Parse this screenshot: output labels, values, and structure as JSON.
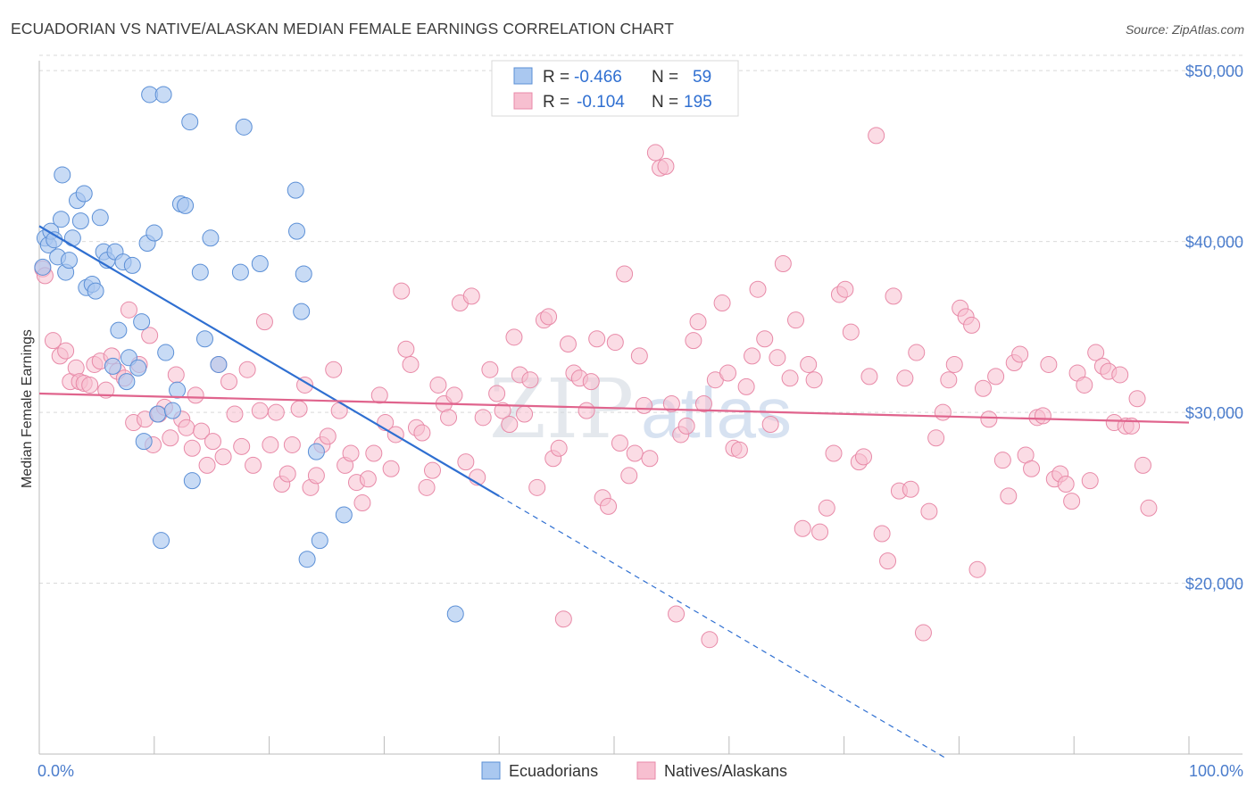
{
  "title": "ECUADORIAN VS NATIVE/ALASKAN MEDIAN FEMALE EARNINGS CORRELATION CHART",
  "source": "Source: ZipAtlas.com",
  "colors": {
    "ecuadorians_fill": "#aac8f0",
    "ecuadorians_stroke": "#5b8fd6",
    "ecuadorians_line": "#2f6fd1",
    "natives_fill": "#f7bfd0",
    "natives_stroke": "#e88aa8",
    "natives_line": "#e0648d",
    "tick_label": "#4a7ccc",
    "grid": "#d9d9d9",
    "watermark": "#c9d2de"
  },
  "legend": {
    "rows": [
      {
        "r_label": "R = ",
        "r_value": "-0.466",
        "n_label": "N = ",
        "n_value": "59"
      },
      {
        "r_label": "R = ",
        "r_value": "-0.104",
        "n_label": "N = ",
        "n_value": "195"
      }
    ]
  },
  "bottom_legend": [
    "Ecuadorians",
    "Natives/Alaskans"
  ],
  "watermark": {
    "zip": "ZIP",
    "atlas": "atlas"
  },
  "chart_data": {
    "type": "scatter",
    "title": "ECUADORIAN VS NATIVE/ALASKAN MEDIAN FEMALE EARNINGS CORRELATION CHART",
    "xlabel": "",
    "ylabel": "Median Female Earnings",
    "xlim": [
      0,
      100
    ],
    "ylim": [
      10000,
      51000
    ],
    "x_tick_labels": [
      "0.0%",
      "100.0%"
    ],
    "y_ticks": [
      20000,
      30000,
      40000,
      50000
    ],
    "y_tick_labels": [
      "$20,000",
      "$30,000",
      "$40,000",
      "$50,000"
    ],
    "grid": true,
    "legend_position": "top-center",
    "series": [
      {
        "name": "Ecuadorians",
        "r": -0.466,
        "n": 59,
        "trend": {
          "x0": 0,
          "y0": 40900,
          "x1": 40,
          "y1": 25100,
          "dashed_to_x": 79,
          "dashed_y": 9700
        },
        "points": [
          [
            0.3,
            38500
          ],
          [
            0.5,
            40200
          ],
          [
            0.8,
            39800
          ],
          [
            1.0,
            40600
          ],
          [
            1.3,
            40100
          ],
          [
            1.6,
            39100
          ],
          [
            1.9,
            41300
          ],
          [
            2.0,
            43900
          ],
          [
            2.3,
            38200
          ],
          [
            2.6,
            38900
          ],
          [
            2.9,
            40200
          ],
          [
            3.3,
            42400
          ],
          [
            3.6,
            41200
          ],
          [
            3.9,
            42800
          ],
          [
            4.1,
            37300
          ],
          [
            4.6,
            37500
          ],
          [
            4.9,
            37100
          ],
          [
            5.3,
            41400
          ],
          [
            5.6,
            39400
          ],
          [
            5.9,
            38900
          ],
          [
            6.4,
            32700
          ],
          [
            6.6,
            39400
          ],
          [
            6.9,
            34800
          ],
          [
            7.3,
            38800
          ],
          [
            7.6,
            31800
          ],
          [
            7.8,
            33200
          ],
          [
            8.1,
            38600
          ],
          [
            8.6,
            32600
          ],
          [
            8.9,
            35300
          ],
          [
            9.1,
            28300
          ],
          [
            9.4,
            39900
          ],
          [
            9.6,
            48600
          ],
          [
            10.0,
            40500
          ],
          [
            10.3,
            29900
          ],
          [
            10.6,
            22500
          ],
          [
            10.8,
            48600
          ],
          [
            11.0,
            33500
          ],
          [
            11.6,
            30100
          ],
          [
            12.0,
            31300
          ],
          [
            12.3,
            42200
          ],
          [
            12.7,
            42100
          ],
          [
            13.3,
            26000
          ],
          [
            13.1,
            47000
          ],
          [
            14.0,
            38200
          ],
          [
            14.4,
            34300
          ],
          [
            14.9,
            40200
          ],
          [
            15.6,
            32800
          ],
          [
            17.5,
            38200
          ],
          [
            17.8,
            46700
          ],
          [
            19.2,
            38700
          ],
          [
            22.3,
            43000
          ],
          [
            22.4,
            40600
          ],
          [
            22.8,
            35900
          ],
          [
            23.0,
            38100
          ],
          [
            23.3,
            21400
          ],
          [
            24.1,
            27700
          ],
          [
            24.4,
            22500
          ],
          [
            26.5,
            24000
          ],
          [
            36.2,
            18200
          ]
        ]
      },
      {
        "name": "Natives/Alaskans",
        "r": -0.104,
        "n": 195,
        "trend": {
          "x0": 0,
          "y0": 31100,
          "x1": 100,
          "y1": 29400
        },
        "points": [
          [
            0.3,
            38400
          ],
          [
            0.5,
            38000
          ],
          [
            1.2,
            34200
          ],
          [
            1.8,
            33300
          ],
          [
            2.3,
            33600
          ],
          [
            2.7,
            31800
          ],
          [
            3.2,
            32600
          ],
          [
            3.5,
            31800
          ],
          [
            3.9,
            31700
          ],
          [
            4.4,
            31600
          ],
          [
            4.8,
            32800
          ],
          [
            5.3,
            33000
          ],
          [
            5.8,
            31300
          ],
          [
            6.3,
            33300
          ],
          [
            6.8,
            32400
          ],
          [
            7.4,
            32000
          ],
          [
            7.8,
            36000
          ],
          [
            8.2,
            29400
          ],
          [
            8.7,
            32800
          ],
          [
            9.2,
            29600
          ],
          [
            9.6,
            34500
          ],
          [
            9.9,
            28100
          ],
          [
            10.4,
            29900
          ],
          [
            10.9,
            30300
          ],
          [
            11.4,
            28500
          ],
          [
            11.9,
            32200
          ],
          [
            12.4,
            29600
          ],
          [
            12.8,
            29100
          ],
          [
            13.3,
            27900
          ],
          [
            13.6,
            31000
          ],
          [
            14.1,
            28900
          ],
          [
            14.6,
            26900
          ],
          [
            15.1,
            28300
          ],
          [
            15.6,
            32800
          ],
          [
            16.0,
            27400
          ],
          [
            16.5,
            31800
          ],
          [
            17.0,
            29900
          ],
          [
            17.6,
            28000
          ],
          [
            18.1,
            32500
          ],
          [
            18.6,
            26900
          ],
          [
            19.2,
            30100
          ],
          [
            19.6,
            35300
          ],
          [
            20.1,
            28100
          ],
          [
            20.6,
            30000
          ],
          [
            21.1,
            25800
          ],
          [
            21.6,
            26400
          ],
          [
            22.0,
            28100
          ],
          [
            22.6,
            30200
          ],
          [
            23.1,
            31600
          ],
          [
            23.6,
            25600
          ],
          [
            24.1,
            26300
          ],
          [
            24.6,
            28100
          ],
          [
            25.1,
            28600
          ],
          [
            25.6,
            32500
          ],
          [
            26.1,
            30100
          ],
          [
            26.6,
            26900
          ],
          [
            27.1,
            27600
          ],
          [
            27.6,
            25900
          ],
          [
            28.1,
            24700
          ],
          [
            28.6,
            26100
          ],
          [
            29.1,
            27600
          ],
          [
            29.6,
            31000
          ],
          [
            30.1,
            29400
          ],
          [
            30.6,
            26700
          ],
          [
            31.0,
            28700
          ],
          [
            31.5,
            37100
          ],
          [
            31.9,
            33700
          ],
          [
            32.3,
            32800
          ],
          [
            32.8,
            29100
          ],
          [
            33.3,
            28800
          ],
          [
            33.7,
            25600
          ],
          [
            34.2,
            26600
          ],
          [
            34.7,
            31600
          ],
          [
            35.2,
            30500
          ],
          [
            35.6,
            29700
          ],
          [
            36.1,
            31000
          ],
          [
            36.6,
            36400
          ],
          [
            37.1,
            27100
          ],
          [
            37.6,
            36800
          ],
          [
            38.1,
            26200
          ],
          [
            38.6,
            29700
          ],
          [
            39.2,
            32500
          ],
          [
            39.8,
            31100
          ],
          [
            40.3,
            30100
          ],
          [
            40.9,
            29300
          ],
          [
            41.3,
            34400
          ],
          [
            41.8,
            32200
          ],
          [
            42.2,
            29900
          ],
          [
            42.7,
            31900
          ],
          [
            43.3,
            25600
          ],
          [
            43.9,
            35400
          ],
          [
            44.3,
            35600
          ],
          [
            44.7,
            27300
          ],
          [
            45.2,
            27900
          ],
          [
            45.6,
            17900
          ],
          [
            46.0,
            34000
          ],
          [
            46.5,
            32300
          ],
          [
            47.0,
            32000
          ],
          [
            47.6,
            30100
          ],
          [
            48.0,
            31800
          ],
          [
            48.5,
            34300
          ],
          [
            49.0,
            25000
          ],
          [
            49.5,
            24500
          ],
          [
            50.1,
            34100
          ],
          [
            50.5,
            28200
          ],
          [
            50.9,
            38100
          ],
          [
            51.3,
            26300
          ],
          [
            51.8,
            27600
          ],
          [
            52.2,
            33300
          ],
          [
            52.6,
            30400
          ],
          [
            53.1,
            27300
          ],
          [
            53.6,
            45200
          ],
          [
            54.0,
            44300
          ],
          [
            54.5,
            44400
          ],
          [
            55.0,
            30500
          ],
          [
            55.4,
            18200
          ],
          [
            55.8,
            28700
          ],
          [
            56.3,
            29200
          ],
          [
            56.9,
            34200
          ],
          [
            57.3,
            35300
          ],
          [
            57.8,
            30500
          ],
          [
            58.3,
            16700
          ],
          [
            58.8,
            31900
          ],
          [
            59.4,
            36400
          ],
          [
            59.9,
            32300
          ],
          [
            60.4,
            27900
          ],
          [
            60.9,
            27800
          ],
          [
            61.5,
            31500
          ],
          [
            62.0,
            33300
          ],
          [
            62.5,
            37200
          ],
          [
            63.1,
            34300
          ],
          [
            63.6,
            29300
          ],
          [
            64.2,
            33200
          ],
          [
            64.7,
            38700
          ],
          [
            65.3,
            32000
          ],
          [
            65.8,
            35400
          ],
          [
            66.4,
            23200
          ],
          [
            66.9,
            32800
          ],
          [
            67.4,
            31900
          ],
          [
            67.9,
            23000
          ],
          [
            68.5,
            24400
          ],
          [
            69.1,
            27600
          ],
          [
            69.6,
            36900
          ],
          [
            70.1,
            37200
          ],
          [
            70.6,
            34700
          ],
          [
            71.3,
            27100
          ],
          [
            71.7,
            27400
          ],
          [
            72.2,
            32100
          ],
          [
            72.8,
            46200
          ],
          [
            73.3,
            22900
          ],
          [
            73.8,
            21300
          ],
          [
            74.3,
            36800
          ],
          [
            74.8,
            25400
          ],
          [
            75.3,
            32000
          ],
          [
            75.8,
            25500
          ],
          [
            76.3,
            33500
          ],
          [
            76.9,
            17100
          ],
          [
            77.4,
            24200
          ],
          [
            78.0,
            28500
          ],
          [
            78.6,
            30000
          ],
          [
            79.1,
            31900
          ],
          [
            79.6,
            32800
          ],
          [
            80.1,
            36100
          ],
          [
            80.6,
            35600
          ],
          [
            81.1,
            35100
          ],
          [
            81.6,
            20800
          ],
          [
            82.1,
            31400
          ],
          [
            82.6,
            29600
          ],
          [
            83.2,
            32100
          ],
          [
            83.8,
            27200
          ],
          [
            84.3,
            25100
          ],
          [
            84.8,
            32900
          ],
          [
            85.3,
            33400
          ],
          [
            85.8,
            27500
          ],
          [
            86.3,
            26700
          ],
          [
            86.8,
            29700
          ],
          [
            87.3,
            29800
          ],
          [
            87.8,
            32800
          ],
          [
            88.3,
            26100
          ],
          [
            88.8,
            26400
          ],
          [
            89.3,
            25800
          ],
          [
            89.8,
            24800
          ],
          [
            90.3,
            32300
          ],
          [
            90.9,
            31600
          ],
          [
            91.4,
            26000
          ],
          [
            91.9,
            33500
          ],
          [
            92.5,
            32700
          ],
          [
            93.0,
            32400
          ],
          [
            93.5,
            29400
          ],
          [
            94.0,
            32200
          ],
          [
            94.5,
            29200
          ],
          [
            95.0,
            29200
          ],
          [
            95.5,
            30800
          ],
          [
            96.0,
            26900
          ],
          [
            96.5,
            24400
          ]
        ]
      }
    ]
  }
}
